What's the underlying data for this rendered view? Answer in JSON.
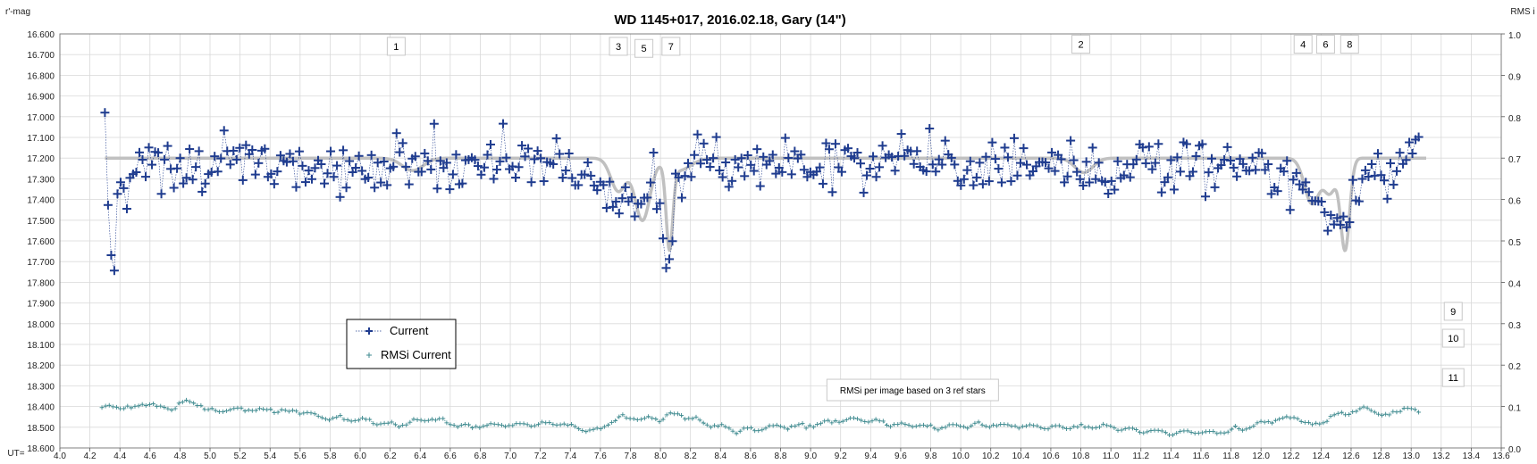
{
  "chart_data": {
    "type": "scatter",
    "title": "WD 1145+017, 2016.02.18,  Gary (14\")",
    "ylabel_left": "r'-mag",
    "ylabel_right": "RMS i",
    "xlabel": "UT=",
    "xlim": [
      4.0,
      13.6
    ],
    "ylim_left": [
      16.6,
      18.6
    ],
    "ylim_right": [
      0.0,
      1.0
    ],
    "y_left_inverted": true,
    "grid": true,
    "x_ticks": [
      "4.0",
      "4.2",
      "4.4",
      "4.6",
      "4.8",
      "5.0",
      "5.2",
      "5.4",
      "5.6",
      "5.8",
      "6.0",
      "6.2",
      "6.4",
      "6.6",
      "6.8",
      "7.0",
      "7.2",
      "7.4",
      "7.6",
      "7.8",
      "8.0",
      "8.2",
      "8.4",
      "8.6",
      "8.8",
      "9.0",
      "9.2",
      "9.4",
      "9.6",
      "9.8",
      "10.0",
      "10.2",
      "10.4",
      "10.6",
      "10.8",
      "11.0",
      "11.2",
      "11.4",
      "11.6",
      "11.8",
      "12.0",
      "12.2",
      "12.4",
      "12.6",
      "12.8",
      "13.0",
      "13.2",
      "13.4",
      "13.6"
    ],
    "y_left_ticks": [
      "16.600",
      "16.700",
      "16.800",
      "16.900",
      "17.000",
      "17.100",
      "17.200",
      "17.300",
      "17.400",
      "17.500",
      "17.600",
      "17.700",
      "17.800",
      "17.900",
      "18.000",
      "18.100",
      "18.200",
      "18.300",
      "18.400",
      "18.500",
      "18.600"
    ],
    "y_right_ticks": [
      "0.0",
      "0.1",
      "0.2",
      "0.3",
      "0.4",
      "0.5",
      "0.6",
      "0.7",
      "0.8",
      "0.9",
      "1.0"
    ],
    "model_baseline": 17.2,
    "model_dips": [
      {
        "center": 6.35,
        "depth": 0.06,
        "width": 0.07
      },
      {
        "center": 7.72,
        "depth": 0.16,
        "width": 0.05
      },
      {
        "center": 7.88,
        "depth": 0.3,
        "width": 0.05
      },
      {
        "center": 8.06,
        "depth": 0.4,
        "width": 0.022
      },
      {
        "center": 8.12,
        "depth": 0.06,
        "width": 0.08
      },
      {
        "center": 10.82,
        "depth": 0.07,
        "width": 0.06
      },
      {
        "center": 12.34,
        "depth": 0.22,
        "width": 0.05
      },
      {
        "center": 12.46,
        "depth": 0.16,
        "width": 0.04
      },
      {
        "center": 12.56,
        "depth": 0.44,
        "width": 0.03
      }
    ],
    "current_anchor_x": [
      4.3,
      4.33,
      4.36,
      4.4,
      4.45,
      4.55,
      4.7,
      4.9,
      5.2,
      5.6,
      6.0,
      6.4,
      6.8,
      7.2,
      7.5,
      7.7,
      7.85,
      7.95,
      8.05,
      8.15,
      8.4,
      9.0,
      9.5,
      10.0,
      10.5,
      10.8,
      10.95,
      11.2,
      11.6,
      12.0,
      12.1,
      12.3,
      12.4,
      12.55,
      12.7,
      12.9,
      13.05
    ],
    "current_anchor_y": [
      16.98,
      17.6,
      17.7,
      17.3,
      17.28,
      17.25,
      17.2,
      17.25,
      17.22,
      17.24,
      17.26,
      17.24,
      17.22,
      17.2,
      17.26,
      17.38,
      17.45,
      17.3,
      17.7,
      17.22,
      17.2,
      17.24,
      17.2,
      17.24,
      17.22,
      17.28,
      17.3,
      17.2,
      17.22,
      17.24,
      17.3,
      17.38,
      17.46,
      17.55,
      17.25,
      17.25,
      17.1
    ],
    "current_noise": 0.06,
    "current_points": 420,
    "current_color": "#1f3c8f",
    "rmsi_anchor_x": [
      4.28,
      4.4,
      4.5,
      4.58,
      4.65,
      4.75,
      4.82,
      4.88,
      5.0,
      5.2,
      5.4,
      5.6,
      5.85,
      6.05,
      6.25,
      6.45,
      6.7,
      7.0,
      7.3,
      7.55,
      7.75,
      7.95,
      8.1,
      8.3,
      8.5,
      8.8,
      9.0,
      9.3,
      9.55,
      9.8,
      10.2,
      10.6,
      10.9,
      11.2,
      11.4,
      11.7,
      11.9,
      12.1,
      12.25,
      12.35,
      12.5,
      12.7,
      12.85,
      12.95,
      13.05
    ],
    "rmsi_anchor_y": [
      0.098,
      0.1,
      0.097,
      0.108,
      0.1,
      0.095,
      0.11,
      0.112,
      0.09,
      0.093,
      0.092,
      0.085,
      0.07,
      0.065,
      0.055,
      0.07,
      0.052,
      0.055,
      0.06,
      0.04,
      0.075,
      0.07,
      0.082,
      0.06,
      0.04,
      0.05,
      0.055,
      0.07,
      0.06,
      0.05,
      0.055,
      0.05,
      0.052,
      0.042,
      0.036,
      0.038,
      0.048,
      0.07,
      0.075,
      0.052,
      0.08,
      0.095,
      0.075,
      0.1,
      0.085
    ],
    "rmsi_points": 360,
    "rmsi_color": "#3e8a8f",
    "model_color": "#c0c0c0",
    "legend": {
      "entries": [
        "Current",
        "RMSi Current"
      ],
      "placement": "middle-left"
    },
    "annotations": [
      {
        "label": "1",
        "x": 6.24,
        "y_mag": 16.66
      },
      {
        "label": "3",
        "x": 7.72,
        "y_mag": 16.66
      },
      {
        "label": "5",
        "x": 7.89,
        "y_mag": 16.67
      },
      {
        "label": "7",
        "x": 8.07,
        "y_mag": 16.66
      },
      {
        "label": "2",
        "x": 10.8,
        "y_mag": 16.65
      },
      {
        "label": "4",
        "x": 12.28,
        "y_mag": 16.65
      },
      {
        "label": "6",
        "x": 12.43,
        "y_mag": 16.65
      },
      {
        "label": "8",
        "x": 12.59,
        "y_mag": 16.65
      },
      {
        "label": "9",
        "x": 13.28,
        "y_mag": 17.94
      },
      {
        "label": "10",
        "x": 13.28,
        "y_mag": 18.07
      },
      {
        "label": "11",
        "x": 13.28,
        "y_mag": 18.26
      }
    ],
    "note": {
      "text": "RMSi per image based on 3 ref stars",
      "x": 9.68,
      "y_mag": 18.32
    }
  }
}
